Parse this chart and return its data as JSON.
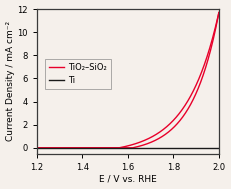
{
  "title": "",
  "xlabel": "E / V vs. RHE",
  "ylabel": "Current Density / mA cm⁻²",
  "xlim": [
    1.2,
    2.0
  ],
  "ylim": [
    -0.5,
    12
  ],
  "yticks": [
    0,
    2,
    4,
    6,
    8,
    10,
    12
  ],
  "xticks": [
    1.2,
    1.4,
    1.6,
    1.8,
    2.0
  ],
  "tio2_sio2_color": "#e8002a",
  "ti_color": "#1a1a1a",
  "background_color": "#f5f0eb",
  "plot_bg_color": "#f5f0eb",
  "legend_tio2": "TiO₂–SiO₂",
  "legend_ti": "Ti",
  "onset_fwd": 1.56,
  "onset_ret": 1.62,
  "max_voltage": 2.0,
  "max_current_fwd": 11.7,
  "max_current_ret": 11.7,
  "k_fwd": 7.2,
  "k_ret": 8.5,
  "figsize": [
    2.31,
    1.89
  ],
  "dpi": 100
}
